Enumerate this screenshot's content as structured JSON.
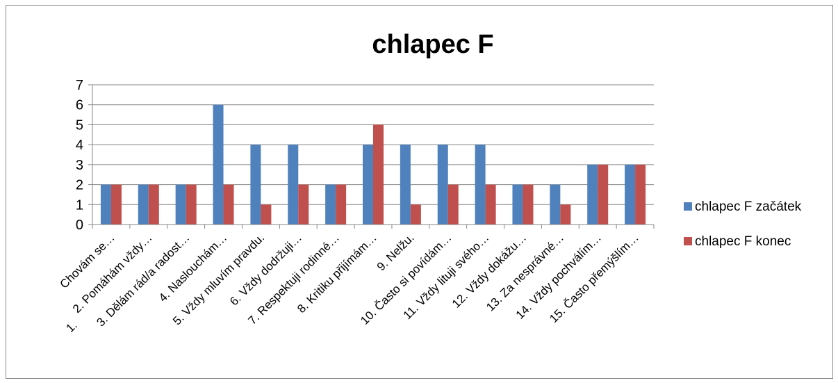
{
  "chart_data": {
    "type": "bar",
    "title": "chlapec F",
    "xlabel": "",
    "ylabel": "",
    "ylim": [
      0,
      7
    ],
    "yticks": [
      0,
      1,
      2,
      3,
      4,
      5,
      6,
      7
    ],
    "grid": true,
    "legend_position": "right",
    "categories": [
      "1. Chovám se…",
      "2. Pomáhám vždy…",
      "3. Dělám rád/a radost…",
      "4. Naslouchám…",
      "5. Vždy mluvím pravdu.",
      "6. Vždy dodržuji…",
      "7. Respektuji rodinné…",
      "8. Kritiku přijímám…",
      "9. Nelžu.",
      "10. Často si povídám…",
      "11. Vždy lituji svého…",
      "12. Vždy dokážu…",
      "13. Za nesprávné…",
      "14. Vždy pochválím…",
      "15. Často přemýšlím…"
    ],
    "series": [
      {
        "name": "chlapec F začátek",
        "color": "#4f81bd",
        "values": [
          2,
          2,
          2,
          6,
          4,
          4,
          2,
          4,
          4,
          4,
          4,
          2,
          2,
          3,
          3
        ]
      },
      {
        "name": "chlapec F konec",
        "color": "#c0504d",
        "values": [
          2,
          2,
          2,
          2,
          1,
          2,
          2,
          5,
          1,
          2,
          2,
          2,
          1,
          3,
          3
        ]
      }
    ]
  }
}
